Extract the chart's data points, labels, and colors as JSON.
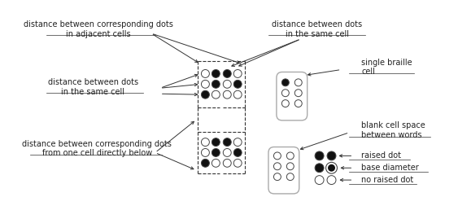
{
  "bg_color": "#ffffff",
  "fig_bg": "#ffffff",
  "dot_filled_color": "#111111",
  "dot_empty_color": "#ffffff",
  "dot_edge_color": "#444444",
  "cell_rect_color": "#999999",
  "line_color": "#333333",
  "text_color": "#222222",
  "font_size": 7.0,
  "labels": {
    "top_left": "distance between corresponding dots\nin adjacent cells",
    "mid_left": "distance between dots\nin the same cell",
    "bot_left": "distance between corresponding dots\nfrom one cell directly below",
    "top_right": "distance between dots\nin the same cell",
    "single_braille": "single braille\ncell",
    "blank_cell": "blank cell space\nbetween words",
    "raised_dot": "raised dot",
    "base_diameter": "base diameter",
    "no_raised_dot": "no raised dot"
  }
}
